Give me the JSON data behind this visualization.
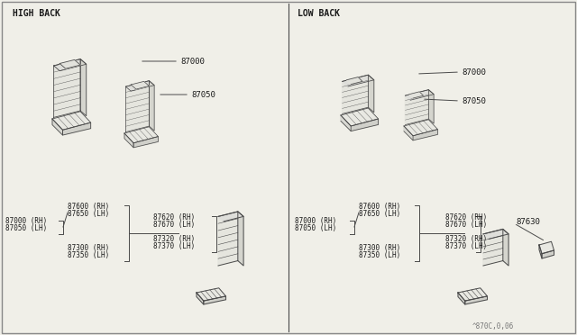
{
  "background_color": "#f0efe8",
  "border_color": "#888888",
  "line_color": "#4a4a4a",
  "text_color": "#1a1a1a",
  "high_back_label": "HIGH BACK",
  "low_back_label": "LOW BACK",
  "watermark": "^870C,0,06",
  "font_size_label": 7.0,
  "font_size_part": 5.8,
  "font_size_wm": 5.5
}
